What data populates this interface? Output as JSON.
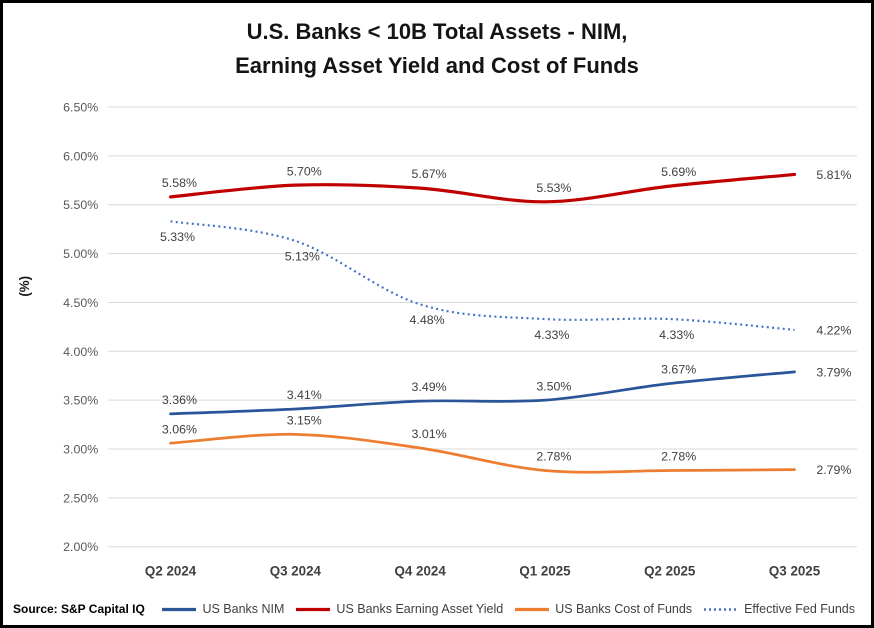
{
  "header": {
    "title_line1": "U.S. Banks < 10B Total Assets - NIM,",
    "title_line2": "Earning Asset Yield and Cost of Funds"
  },
  "footer": {
    "source_label": "Source: S&P Capital IQ"
  },
  "colors": {
    "gridline": "#D9D9D9",
    "axis_tick_text": "#595959",
    "xaxis_text": "#404040",
    "data_label_text": "#404040",
    "legend_text": "#404040",
    "title_text": "#141414",
    "border": "#000000",
    "nim_blue": "#2A5599",
    "yield_red": "#C00000",
    "cost_orange": "#ED7D31",
    "fedfunds_blue": "#4472C4"
  },
  "chart_data": {
    "type": "line",
    "title": "U.S. Banks < 10B Total Assets - NIM, Earning Asset Yield and Cost of Funds",
    "xlabel": "",
    "ylabel": "(%)",
    "ylim": [
      2.0,
      6.5
    ],
    "grid": true,
    "smooth_lines": true,
    "legend_position": "bottom",
    "categories": [
      "Q2 2024",
      "Q3 2024",
      "Q4 2024",
      "Q1 2025",
      "Q2 2025",
      "Q3 2025"
    ],
    "y_ticks": [
      "6.50%",
      "6.00%",
      "5.50%",
      "5.00%",
      "4.50%",
      "4.00%",
      "3.50%",
      "3.00%",
      "2.50%",
      "2.00%"
    ],
    "series": [
      {
        "name": "US Banks NIM",
        "color": "#2A5599",
        "style": "solid",
        "label_position": "above",
        "values": [
          3.36,
          3.41,
          3.49,
          3.5,
          3.67,
          3.79
        ],
        "labels": [
          "3.36%",
          "3.41%",
          "3.49%",
          "3.50%",
          "3.67%",
          "3.79%"
        ]
      },
      {
        "name": "US Banks Earning Asset Yield",
        "color": "#C00000",
        "style": "solid",
        "label_position": "above",
        "values": [
          5.58,
          5.7,
          5.67,
          5.53,
          5.69,
          5.81
        ],
        "labels": [
          "5.58%",
          "5.70%",
          "5.67%",
          "5.53%",
          "5.69%",
          "5.81%"
        ]
      },
      {
        "name": "US Banks Cost of Funds",
        "color": "#ED7D31",
        "style": "solid",
        "label_position": "above",
        "values": [
          3.06,
          3.15,
          3.01,
          2.78,
          2.78,
          2.79
        ],
        "labels": [
          "3.06%",
          "3.15%",
          "3.01%",
          "2.78%",
          "2.78%",
          "2.79%"
        ]
      },
      {
        "name": "Effective Fed Funds",
        "color": "#4472C4",
        "style": "dotted",
        "label_position": "below",
        "values": [
          5.33,
          5.13,
          4.48,
          4.33,
          4.33,
          4.22
        ],
        "labels": [
          "5.33%",
          "5.13%",
          "4.48%",
          "4.33%",
          "4.33%",
          "4.22%"
        ]
      }
    ]
  }
}
